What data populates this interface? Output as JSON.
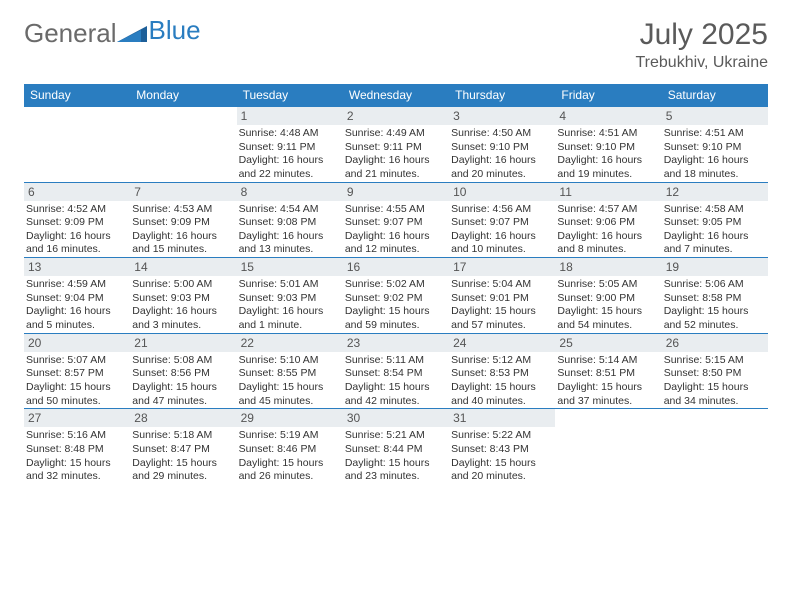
{
  "logo": {
    "text1": "General",
    "text2": "Blue"
  },
  "title": "July 2025",
  "location": "Trebukhiv, Ukraine",
  "colors": {
    "header_bg": "#2a7dc0",
    "header_text": "#ffffff",
    "daynum_bg": "#e9edf0",
    "border": "#2a7dc0",
    "text": "#333333",
    "logo_gray": "#6a6a6a",
    "logo_blue": "#2a7dc0"
  },
  "day_headers": [
    "Sunday",
    "Monday",
    "Tuesday",
    "Wednesday",
    "Thursday",
    "Friday",
    "Saturday"
  ],
  "weeks": [
    [
      {
        "n": "",
        "sunrise": "",
        "sunset": "",
        "daylight": ""
      },
      {
        "n": "",
        "sunrise": "",
        "sunset": "",
        "daylight": ""
      },
      {
        "n": "1",
        "sunrise": "Sunrise: 4:48 AM",
        "sunset": "Sunset: 9:11 PM",
        "daylight": "Daylight: 16 hours and 22 minutes."
      },
      {
        "n": "2",
        "sunrise": "Sunrise: 4:49 AM",
        "sunset": "Sunset: 9:11 PM",
        "daylight": "Daylight: 16 hours and 21 minutes."
      },
      {
        "n": "3",
        "sunrise": "Sunrise: 4:50 AM",
        "sunset": "Sunset: 9:10 PM",
        "daylight": "Daylight: 16 hours and 20 minutes."
      },
      {
        "n": "4",
        "sunrise": "Sunrise: 4:51 AM",
        "sunset": "Sunset: 9:10 PM",
        "daylight": "Daylight: 16 hours and 19 minutes."
      },
      {
        "n": "5",
        "sunrise": "Sunrise: 4:51 AM",
        "sunset": "Sunset: 9:10 PM",
        "daylight": "Daylight: 16 hours and 18 minutes."
      }
    ],
    [
      {
        "n": "6",
        "sunrise": "Sunrise: 4:52 AM",
        "sunset": "Sunset: 9:09 PM",
        "daylight": "Daylight: 16 hours and 16 minutes."
      },
      {
        "n": "7",
        "sunrise": "Sunrise: 4:53 AM",
        "sunset": "Sunset: 9:09 PM",
        "daylight": "Daylight: 16 hours and 15 minutes."
      },
      {
        "n": "8",
        "sunrise": "Sunrise: 4:54 AM",
        "sunset": "Sunset: 9:08 PM",
        "daylight": "Daylight: 16 hours and 13 minutes."
      },
      {
        "n": "9",
        "sunrise": "Sunrise: 4:55 AM",
        "sunset": "Sunset: 9:07 PM",
        "daylight": "Daylight: 16 hours and 12 minutes."
      },
      {
        "n": "10",
        "sunrise": "Sunrise: 4:56 AM",
        "sunset": "Sunset: 9:07 PM",
        "daylight": "Daylight: 16 hours and 10 minutes."
      },
      {
        "n": "11",
        "sunrise": "Sunrise: 4:57 AM",
        "sunset": "Sunset: 9:06 PM",
        "daylight": "Daylight: 16 hours and 8 minutes."
      },
      {
        "n": "12",
        "sunrise": "Sunrise: 4:58 AM",
        "sunset": "Sunset: 9:05 PM",
        "daylight": "Daylight: 16 hours and 7 minutes."
      }
    ],
    [
      {
        "n": "13",
        "sunrise": "Sunrise: 4:59 AM",
        "sunset": "Sunset: 9:04 PM",
        "daylight": "Daylight: 16 hours and 5 minutes."
      },
      {
        "n": "14",
        "sunrise": "Sunrise: 5:00 AM",
        "sunset": "Sunset: 9:03 PM",
        "daylight": "Daylight: 16 hours and 3 minutes."
      },
      {
        "n": "15",
        "sunrise": "Sunrise: 5:01 AM",
        "sunset": "Sunset: 9:03 PM",
        "daylight": "Daylight: 16 hours and 1 minute."
      },
      {
        "n": "16",
        "sunrise": "Sunrise: 5:02 AM",
        "sunset": "Sunset: 9:02 PM",
        "daylight": "Daylight: 15 hours and 59 minutes."
      },
      {
        "n": "17",
        "sunrise": "Sunrise: 5:04 AM",
        "sunset": "Sunset: 9:01 PM",
        "daylight": "Daylight: 15 hours and 57 minutes."
      },
      {
        "n": "18",
        "sunrise": "Sunrise: 5:05 AM",
        "sunset": "Sunset: 9:00 PM",
        "daylight": "Daylight: 15 hours and 54 minutes."
      },
      {
        "n": "19",
        "sunrise": "Sunrise: 5:06 AM",
        "sunset": "Sunset: 8:58 PM",
        "daylight": "Daylight: 15 hours and 52 minutes."
      }
    ],
    [
      {
        "n": "20",
        "sunrise": "Sunrise: 5:07 AM",
        "sunset": "Sunset: 8:57 PM",
        "daylight": "Daylight: 15 hours and 50 minutes."
      },
      {
        "n": "21",
        "sunrise": "Sunrise: 5:08 AM",
        "sunset": "Sunset: 8:56 PM",
        "daylight": "Daylight: 15 hours and 47 minutes."
      },
      {
        "n": "22",
        "sunrise": "Sunrise: 5:10 AM",
        "sunset": "Sunset: 8:55 PM",
        "daylight": "Daylight: 15 hours and 45 minutes."
      },
      {
        "n": "23",
        "sunrise": "Sunrise: 5:11 AM",
        "sunset": "Sunset: 8:54 PM",
        "daylight": "Daylight: 15 hours and 42 minutes."
      },
      {
        "n": "24",
        "sunrise": "Sunrise: 5:12 AM",
        "sunset": "Sunset: 8:53 PM",
        "daylight": "Daylight: 15 hours and 40 minutes."
      },
      {
        "n": "25",
        "sunrise": "Sunrise: 5:14 AM",
        "sunset": "Sunset: 8:51 PM",
        "daylight": "Daylight: 15 hours and 37 minutes."
      },
      {
        "n": "26",
        "sunrise": "Sunrise: 5:15 AM",
        "sunset": "Sunset: 8:50 PM",
        "daylight": "Daylight: 15 hours and 34 minutes."
      }
    ],
    [
      {
        "n": "27",
        "sunrise": "Sunrise: 5:16 AM",
        "sunset": "Sunset: 8:48 PM",
        "daylight": "Daylight: 15 hours and 32 minutes."
      },
      {
        "n": "28",
        "sunrise": "Sunrise: 5:18 AM",
        "sunset": "Sunset: 8:47 PM",
        "daylight": "Daylight: 15 hours and 29 minutes."
      },
      {
        "n": "29",
        "sunrise": "Sunrise: 5:19 AM",
        "sunset": "Sunset: 8:46 PM",
        "daylight": "Daylight: 15 hours and 26 minutes."
      },
      {
        "n": "30",
        "sunrise": "Sunrise: 5:21 AM",
        "sunset": "Sunset: 8:44 PM",
        "daylight": "Daylight: 15 hours and 23 minutes."
      },
      {
        "n": "31",
        "sunrise": "Sunrise: 5:22 AM",
        "sunset": "Sunset: 8:43 PM",
        "daylight": "Daylight: 15 hours and 20 minutes."
      },
      {
        "n": "",
        "sunrise": "",
        "sunset": "",
        "daylight": ""
      },
      {
        "n": "",
        "sunrise": "",
        "sunset": "",
        "daylight": ""
      }
    ]
  ]
}
